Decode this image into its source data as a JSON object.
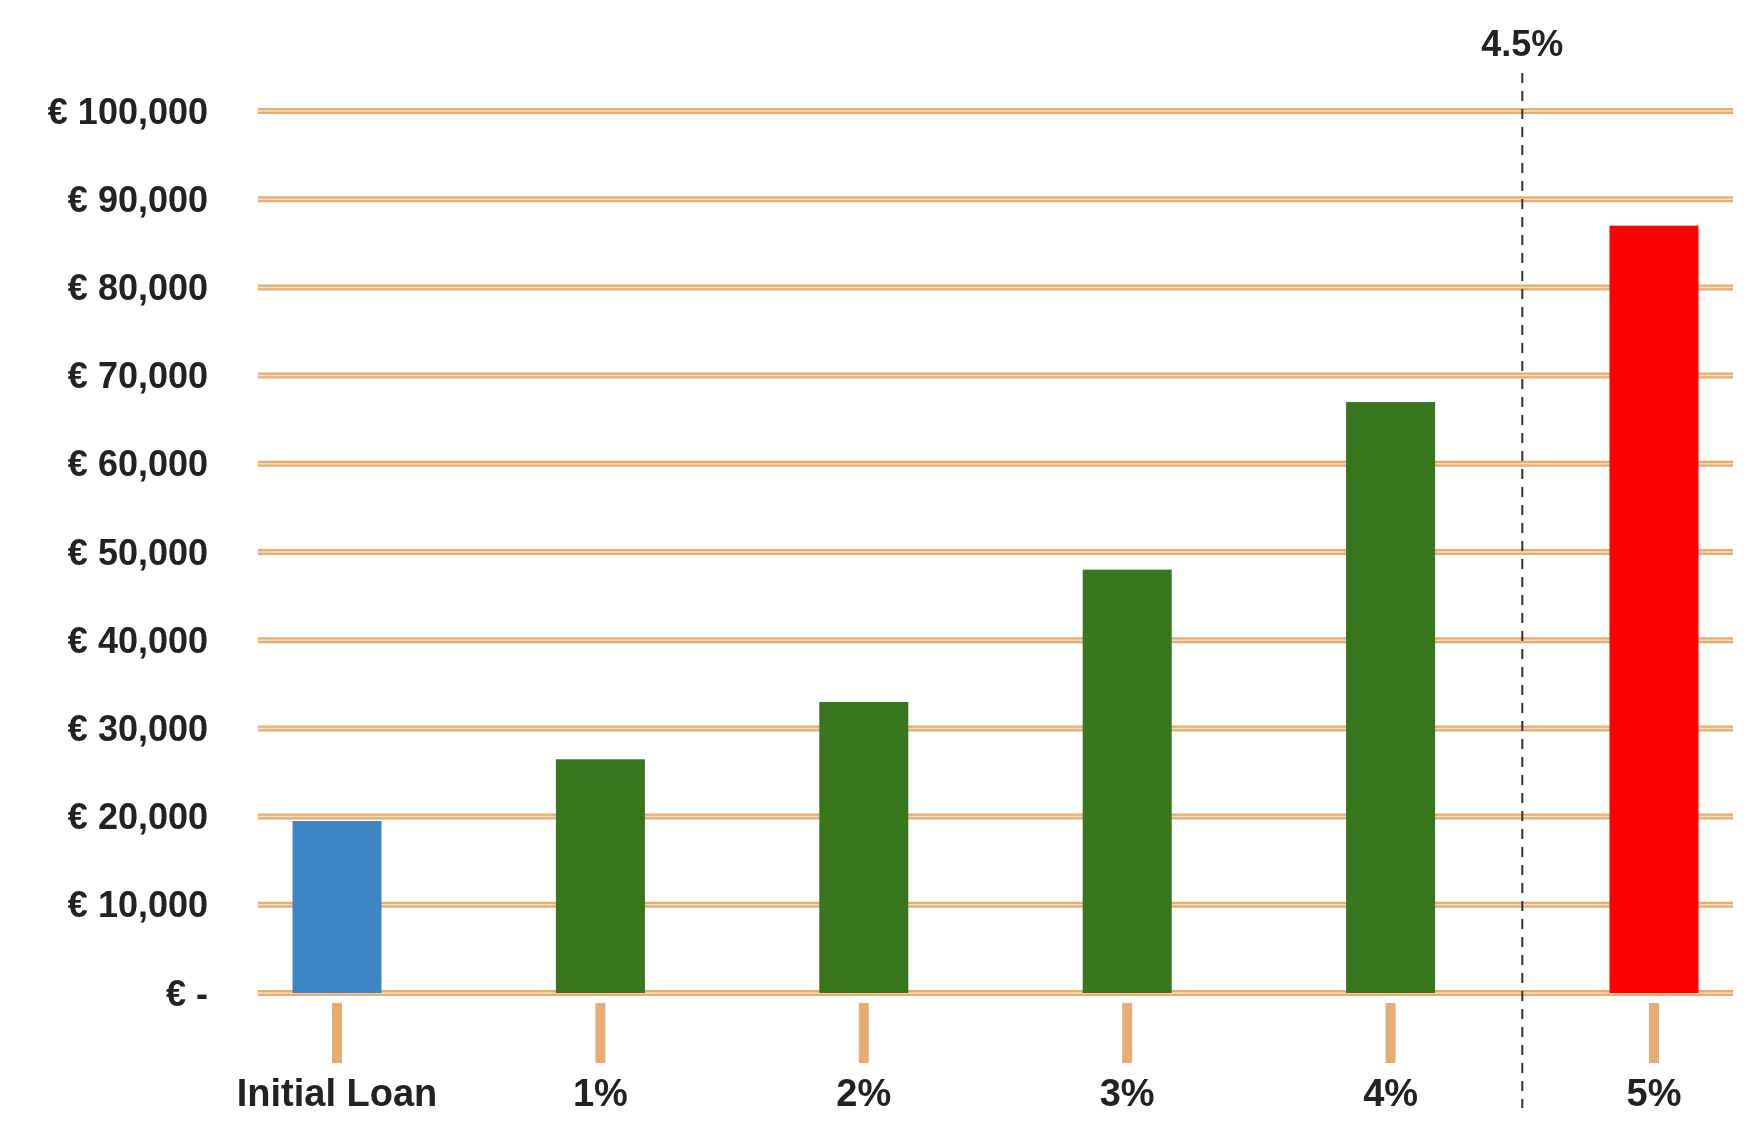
{
  "chart_data": {
    "type": "bar",
    "x": [
      0,
      1,
      2,
      3,
      4,
      5
    ],
    "values": [
      19500,
      26500,
      33000,
      48000,
      67000,
      87000
    ],
    "colors": [
      "#3d85c6",
      "#38761d",
      "#38761d",
      "#38761d",
      "#38761d",
      "#ff0000"
    ],
    "xlim": [
      -0.3,
      5.3
    ],
    "xticks": [
      {
        "value": 0,
        "label": "Initial Loan"
      },
      {
        "value": 1,
        "label": "1%"
      },
      {
        "value": 2,
        "label": "2%"
      },
      {
        "value": 3,
        "label": "3%"
      },
      {
        "value": 4,
        "label": "4%"
      },
      {
        "value": 5,
        "label": "5%"
      }
    ],
    "ylim": [
      0,
      100000
    ],
    "yticks": [
      {
        "value": 0,
        "label": "€ -"
      },
      {
        "value": 10000,
        "label": "€ 10,000"
      },
      {
        "value": 20000,
        "label": "€ 20,000"
      },
      {
        "value": 30000,
        "label": "€ 30,000"
      },
      {
        "value": 40000,
        "label": "€ 40,000"
      },
      {
        "value": 50000,
        "label": "€ 50,000"
      },
      {
        "value": 60000,
        "label": "€ 60,000"
      },
      {
        "value": 70000,
        "label": "€ 70,000"
      },
      {
        "value": 80000,
        "label": "€ 80,000"
      },
      {
        "value": 90000,
        "label": "€ 90,000"
      },
      {
        "value": 100000,
        "label": "€ 100,000"
      }
    ],
    "grid": "y",
    "ref_lines": [
      {
        "axis": "x",
        "value": 4.5,
        "label": "4.5%",
        "color": "#333333",
        "line_style": "dashed"
      }
    ]
  }
}
